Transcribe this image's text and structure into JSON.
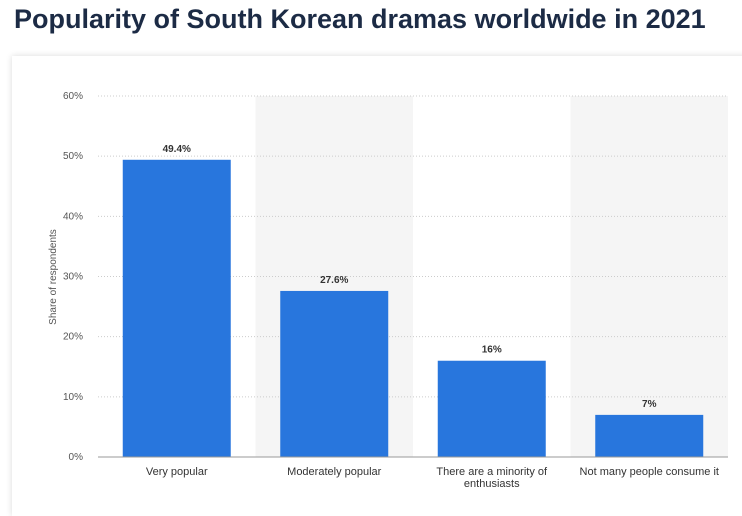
{
  "chart_data": {
    "type": "bar",
    "title": "Popularity of South Korean dramas worldwide in 2021",
    "ylabel": "Share of respondents",
    "categories": [
      "Very popular",
      "Moderately popular",
      "There are a minority of enthusiasts",
      "Not many people consume it"
    ],
    "values": [
      49.4,
      27.6,
      16,
      7
    ],
    "value_labels": [
      "49.4%",
      "27.6%",
      "16%",
      "7%"
    ],
    "color": "#2876dd",
    "ylim": [
      0,
      60
    ],
    "yticks": [
      {
        "value": 0,
        "label": "0%"
      },
      {
        "value": 10,
        "label": "10%"
      },
      {
        "value": 20,
        "label": "20%"
      },
      {
        "value": 30,
        "label": "30%"
      },
      {
        "value": 40,
        "label": "40%"
      },
      {
        "value": 50,
        "label": "50%"
      },
      {
        "value": 60,
        "label": "60%"
      }
    ],
    "grid": true
  }
}
